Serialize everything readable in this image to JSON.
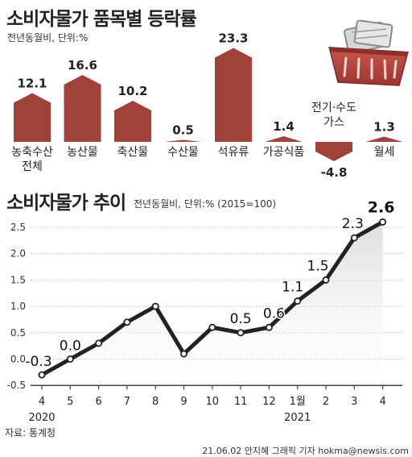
{
  "header": {
    "title": "소비자물가 품목별 등락률",
    "subtitle": "전년동월비, 단위:%"
  },
  "line_header": {
    "title": "소비자물가 추이",
    "subtitle": "전년동월비, 단위:% (2015=100)"
  },
  "footer": {
    "source": "자료: 통계청",
    "credit": "21.06.02 안지혜 그래픽 기자 hokma@newsis.com"
  },
  "colors": {
    "bar": "#a0413a",
    "line": "#222222",
    "axis": "#444444",
    "grid": "#bbbbbb",
    "basket": "#b5433d"
  },
  "icons": {
    "basket": "shopping-basket-icon"
  },
  "chart_data": [
    {
      "type": "bar",
      "title": "소비자물가 품목별 등락률",
      "categories": [
        [
          "농축수산",
          "전체"
        ],
        [
          "농산물"
        ],
        [
          "축산물"
        ],
        [
          "수산물"
        ],
        [
          "석유류"
        ],
        [
          "가공식품"
        ],
        [
          "전기·수도",
          "가스"
        ],
        [
          "월세"
        ]
      ],
      "values": [
        12.1,
        16.6,
        10.2,
        0.5,
        23.3,
        1.4,
        -4.8,
        1.3
      ],
      "value_labels": [
        "12.1",
        "16.6",
        "10.2",
        "0.5",
        "23.3",
        "1.4",
        "-4.8",
        "1.3"
      ],
      "unit": "%"
    },
    {
      "type": "line",
      "title": "소비자물가 추이",
      "x_labels": [
        "4",
        "5",
        "6",
        "7",
        "8",
        "9",
        "10",
        "11",
        "12",
        "1월",
        "2",
        "3",
        "4"
      ],
      "year_labels": [
        {
          "label": "2020",
          "at_index": 0
        },
        {
          "label": "2021",
          "at_index": 9
        }
      ],
      "values": [
        -0.3,
        0.0,
        0.3,
        0.7,
        1.0,
        0.1,
        0.6,
        0.5,
        0.6,
        1.1,
        1.5,
        2.3,
        2.6
      ],
      "point_labels": [
        {
          "index": 0,
          "label": "-0.3"
        },
        {
          "index": 1,
          "label": "0.0"
        },
        {
          "index": 7,
          "label": "0.5"
        },
        {
          "index": 8,
          "label": "0.6"
        },
        {
          "index": 9,
          "label": "1.1"
        },
        {
          "index": 10,
          "label": "1.5"
        },
        {
          "index": 11,
          "label": "2.3"
        },
        {
          "index": 12,
          "label": "2.6"
        }
      ],
      "y_ticks": [
        "2.5",
        "2.0",
        "1.5",
        "1.0",
        "0.5",
        "0.0",
        "-0.5"
      ],
      "ylim": [
        -0.5,
        2.8
      ],
      "grid": true
    }
  ]
}
